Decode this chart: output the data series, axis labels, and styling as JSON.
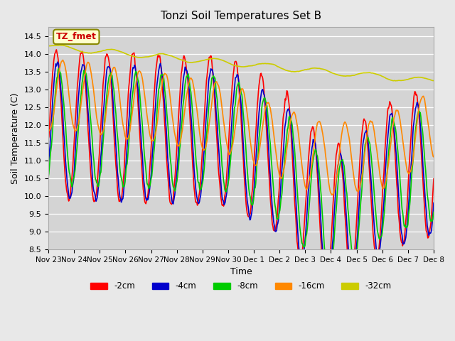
{
  "title": "Tonzi Soil Temperatures Set B",
  "xlabel": "Time",
  "ylabel": "Soil Temperature (C)",
  "ylim": [
    8.5,
    14.75
  ],
  "annotation_text": "TZ_fmet",
  "bg_color": "#e8e8e8",
  "plot_bg_color": "#d4d4d4",
  "grid_color": "white",
  "legend_labels": [
    "-2cm",
    "-4cm",
    "-8cm",
    "-16cm",
    "-32cm"
  ],
  "legend_colors": [
    "#ff0000",
    "#0000cc",
    "#00cc00",
    "#ff8800",
    "#cccc00"
  ],
  "line_width": 1.2,
  "x_tick_labels": [
    "Nov 23",
    "Nov 24",
    "Nov 25",
    "Nov 26",
    "Nov 27",
    "Nov 28",
    "Nov 29",
    "Nov 30",
    "Dec 1",
    "Dec 2",
    "Dec 3",
    "Dec 4",
    "Dec 5",
    "Dec 6",
    "Dec 7",
    "Dec 8"
  ],
  "n_days": 15,
  "points_per_day": 48
}
